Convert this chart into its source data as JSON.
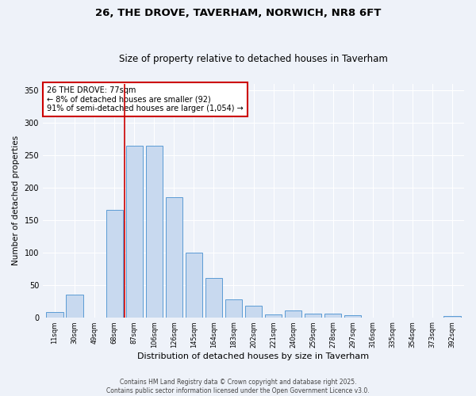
{
  "title_line1": "26, THE DROVE, TAVERHAM, NORWICH, NR8 6FT",
  "title_line2": "Size of property relative to detached houses in Taverham",
  "xlabel": "Distribution of detached houses by size in Taverham",
  "ylabel": "Number of detached properties",
  "categories": [
    "11sqm",
    "30sqm",
    "49sqm",
    "68sqm",
    "87sqm",
    "106sqm",
    "126sqm",
    "145sqm",
    "164sqm",
    "183sqm",
    "202sqm",
    "221sqm",
    "240sqm",
    "259sqm",
    "278sqm",
    "297sqm",
    "316sqm",
    "335sqm",
    "354sqm",
    "373sqm",
    "392sqm"
  ],
  "values": [
    8,
    35,
    0,
    165,
    265,
    265,
    185,
    100,
    60,
    27,
    18,
    4,
    10,
    5,
    5,
    3,
    0,
    0,
    0,
    0,
    2
  ],
  "bar_color": "#c8d9ef",
  "bar_edge_color": "#5b9bd5",
  "vline_x": 3.5,
  "vline_color": "#cc0000",
  "annotation_text": "26 THE DROVE: 77sqm\n← 8% of detached houses are smaller (92)\n91% of semi-detached houses are larger (1,054) →",
  "annotation_box_color": "#ffffff",
  "annotation_box_edge": "#cc0000",
  "ylim": [
    0,
    360
  ],
  "yticks": [
    0,
    50,
    100,
    150,
    200,
    250,
    300,
    350
  ],
  "footer": "Contains HM Land Registry data © Crown copyright and database right 2025.\nContains public sector information licensed under the Open Government Licence v3.0.",
  "bg_color": "#eef2f9",
  "plot_bg_color": "#eef2f9",
  "grid_color": "#ffffff",
  "title_fontsize": 9.5,
  "subtitle_fontsize": 8.5,
  "xlabel_fontsize": 8,
  "ylabel_fontsize": 7.5,
  "tick_fontsize": 6,
  "annotation_fontsize": 7,
  "footer_fontsize": 5.5
}
